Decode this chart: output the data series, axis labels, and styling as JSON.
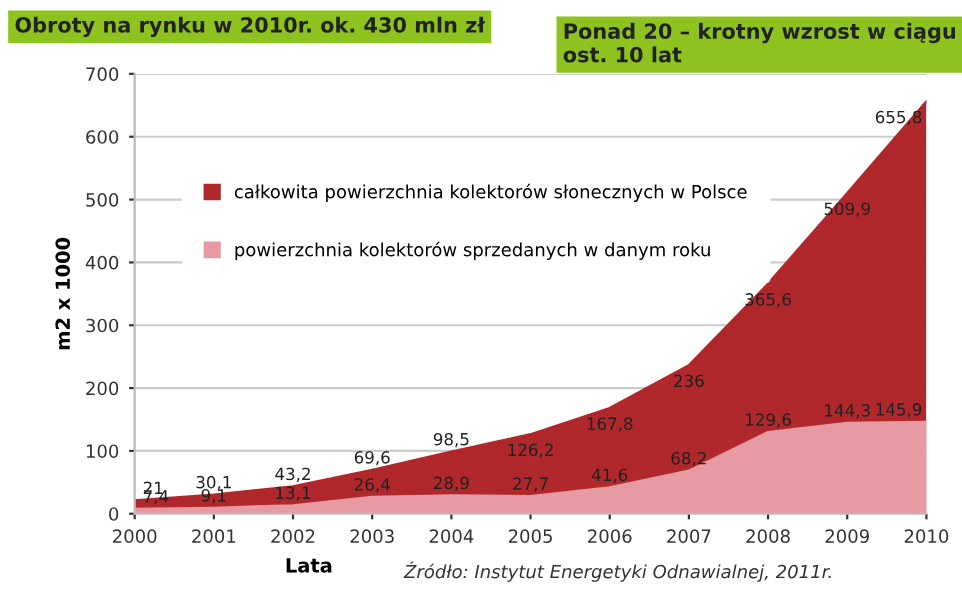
{
  "chart_data": {
    "type": "area",
    "title": "Obroty na rynku w 2010r. ok. 430 mln zł",
    "subtitle": "Ponad 20 – krotny wzrost w ciągu ost. 10 lat",
    "xlabel": "Lata",
    "ylabel": "m2 x 1000",
    "annotations": [
      "Źródło: Instytut Energetyki Odnawialnej, 2011r."
    ],
    "x": [
      2000,
      2001,
      2002,
      2003,
      2004,
      2005,
      2006,
      2007,
      2008,
      2009,
      2010
    ],
    "series": [
      {
        "name": "całkowita powierzchnia kolektorów słonecznych w Polsce",
        "color": "#b0282c",
        "values": [
          21,
          30.1,
          43.2,
          69.6,
          98.5,
          126.2,
          167.8,
          236,
          365.6,
          509.9,
          655.8
        ],
        "value_labels": [
          "21",
          "30,1",
          "43,2",
          "69,6",
          "98,5",
          "126,2",
          "167,8",
          "236",
          "365,6",
          "509,9",
          "655,8"
        ]
      },
      {
        "name": "powierzchnia kolektorów sprzedanych w danym roku",
        "color": "#e79aa2",
        "values": [
          7.4,
          9.1,
          13.1,
          26.4,
          28.9,
          27.7,
          41.6,
          68.2,
          129.6,
          144.3,
          145.9
        ],
        "value_labels": [
          "7,4",
          "9,1",
          "13,1",
          "26,4",
          "28,9",
          "27,7",
          "41,6",
          "68,2",
          "129,6",
          "144,3",
          "145,9"
        ]
      }
    ],
    "xlim": [
      2000,
      2010
    ],
    "xticks": [
      2000,
      2001,
      2002,
      2003,
      2004,
      2005,
      2006,
      2007,
      2008,
      2009,
      2010
    ],
    "ylim": [
      0,
      700
    ],
    "yticks": [
      0,
      100,
      200,
      300,
      400,
      500,
      600,
      700
    ],
    "grid": "y",
    "legend": "top left"
  }
}
